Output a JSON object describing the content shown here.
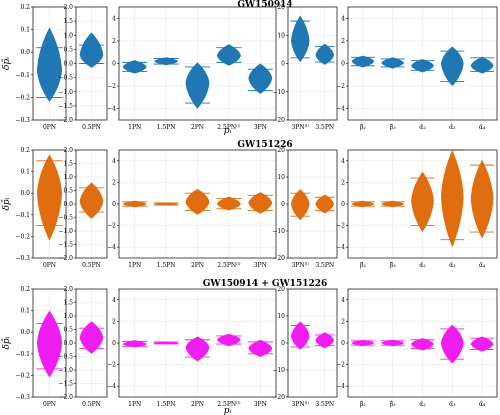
{
  "chart_data": {
    "type": "violin",
    "ylabel": "δp̂ᵢ",
    "xlabel": "pᵢ",
    "panel_groups": [
      {
        "id": "g0",
        "categories": [
          "0PN"
        ],
        "ylim": [
          -0.3,
          0.2
        ],
        "yticks": [
          -0.3,
          -0.2,
          -0.1,
          0,
          0.1,
          0.2
        ],
        "ytick_labels": [
          "−0.3",
          "−0.2",
          "−0.1",
          "0.0",
          "0.1",
          "0.2"
        ]
      },
      {
        "id": "g1",
        "categories": [
          "0.5PN"
        ],
        "ylim": [
          -2.0,
          2.0
        ],
        "yticks": [
          -2,
          -1.5,
          -1,
          -0.5,
          0,
          0.5,
          1,
          1.5,
          2
        ],
        "ytick_labels": [
          "−2.0",
          "−1.5",
          "−1.0",
          "−0.5",
          "0.0",
          "0.5",
          "1.0",
          "1.5",
          "2.0"
        ]
      },
      {
        "id": "g2",
        "categories": [
          "1PN",
          "1.5PN",
          "2PN",
          "2.5PN⁽ˡ⁾",
          "3PN"
        ],
        "ylim": [
          -5,
          5
        ],
        "yticks": [
          -4,
          -2,
          0,
          2,
          4
        ],
        "ytick_labels": [
          "−4",
          "−2",
          "0",
          "2",
          "4"
        ]
      },
      {
        "id": "g3",
        "categories": [
          "3PN⁽ˡ⁾",
          "3.5PN"
        ],
        "ylim": [
          -20,
          20
        ],
        "yticks": [
          -20,
          -10,
          0,
          10,
          20
        ],
        "ytick_labels": [
          "−20",
          "−10",
          "0",
          "10",
          "20"
        ]
      },
      {
        "id": "g4",
        "categories": [
          "β̂₂",
          "β̂₃",
          "α̂₂",
          "α̂₃",
          "α̂₄"
        ],
        "ylim": [
          -5,
          5
        ],
        "yticks": [
          -4,
          -2,
          0,
          2,
          4
        ],
        "ytick_labels": [
          "−4",
          "−2",
          "0",
          "2",
          "4"
        ]
      }
    ],
    "rows": [
      {
        "title": "GW150914",
        "color": "#1f77b4",
        "series": [
          [
            {
              "median": -0.08,
              "lo": -0.2,
              "hi": 0.02,
              "min": -0.22,
              "max": 0.11
            }
          ],
          [
            {
              "median": 0.3,
              "lo": 0.0,
              "hi": 0.65,
              "min": -0.15,
              "max": 1.1
            }
          ],
          [
            {
              "median": -0.3,
              "lo": -0.7,
              "hi": 0.1,
              "min": -0.9,
              "max": 0.3
            },
            {
              "median": 0.2,
              "lo": -0.05,
              "hi": 0.45,
              "min": -0.15,
              "max": 0.55
            },
            {
              "median": -1.7,
              "lo": -3.5,
              "hi": -0.3,
              "min": -4.0,
              "max": 0.1
            },
            {
              "median": 0.7,
              "lo": 0.1,
              "hi": 1.4,
              "min": -0.2,
              "max": 1.7
            },
            {
              "median": -1.3,
              "lo": -2.4,
              "hi": -0.5,
              "min": -2.7,
              "max": 0.0
            }
          ],
          [
            {
              "median": 8.0,
              "lo": 2.0,
              "hi": 15.0,
              "min": 0.5,
              "max": 17.0
            },
            {
              "median": 3.0,
              "lo": 0.5,
              "hi": 6.0,
              "min": -0.5,
              "max": 7.0
            }
          ],
          [
            {
              "median": 0.2,
              "lo": -0.2,
              "hi": 0.55,
              "min": -0.35,
              "max": 0.7
            },
            {
              "median": 0.05,
              "lo": -0.3,
              "hi": 0.4,
              "min": -0.45,
              "max": 0.55
            },
            {
              "median": -0.2,
              "lo": -0.6,
              "hi": 0.25,
              "min": -0.8,
              "max": 0.4
            },
            {
              "median": 0.0,
              "lo": -1.6,
              "hi": 1.1,
              "min": -2.0,
              "max": 1.5
            },
            {
              "median": -0.2,
              "lo": -0.7,
              "hi": 0.5,
              "min": -0.9,
              "max": 0.6
            }
          ]
        ]
      },
      {
        "title": "GW151226",
        "color": "#e06d10",
        "series": [
          [
            {
              "median": 0.0,
              "lo": -0.15,
              "hi": 0.15,
              "min": -0.22,
              "max": 0.18
            }
          ],
          [
            {
              "median": 0.1,
              "lo": -0.3,
              "hi": 0.6,
              "min": -0.55,
              "max": 0.8
            }
          ],
          [
            {
              "median": 0.0,
              "lo": -0.2,
              "hi": 0.2,
              "min": -0.3,
              "max": 0.3
            },
            {
              "median": 0.0,
              "lo": -0.1,
              "hi": 0.1,
              "min": -0.15,
              "max": 0.15
            },
            {
              "median": 0.2,
              "lo": -0.6,
              "hi": 1.0,
              "min": -1.0,
              "max": 1.4
            },
            {
              "median": 0.0,
              "lo": -0.45,
              "hi": 0.5,
              "min": -0.6,
              "max": 0.7
            },
            {
              "median": 0.1,
              "lo": -0.6,
              "hi": 0.8,
              "min": -0.9,
              "max": 1.1
            }
          ],
          [
            {
              "median": 0.0,
              "lo": -4.5,
              "hi": 4.0,
              "min": -6.0,
              "max": 5.5
            },
            {
              "median": 0.0,
              "lo": -2.5,
              "hi": 2.5,
              "min": -3.5,
              "max": 3.5
            }
          ],
          [
            {
              "median": 0.0,
              "lo": -0.2,
              "hi": 0.2,
              "min": -0.3,
              "max": 0.3
            },
            {
              "median": 0.0,
              "lo": -0.2,
              "hi": 0.2,
              "min": -0.3,
              "max": 0.3
            },
            {
              "median": 0.3,
              "lo": -2.0,
              "hi": 2.4,
              "min": -2.6,
              "max": 3.0
            },
            {
              "median": 0.7,
              "lo": -3.3,
              "hi": 5.0,
              "min": -4.0,
              "max": 5.0
            },
            {
              "median": 0.5,
              "lo": -2.6,
              "hi": 3.6,
              "min": -3.2,
              "max": 4.1
            }
          ]
        ]
      },
      {
        "title": "GW150914 + GW151226",
        "color": "#f01df0",
        "series": [
          [
            {
              "median": -0.05,
              "lo": -0.17,
              "hi": 0.04,
              "min": -0.21,
              "max": 0.1
            }
          ],
          [
            {
              "median": 0.2,
              "lo": -0.2,
              "hi": 0.55,
              "min": -0.4,
              "max": 0.8
            }
          ],
          [
            {
              "median": -0.1,
              "lo": -0.3,
              "hi": 0.15,
              "min": -0.4,
              "max": 0.25
            },
            {
              "median": 0.0,
              "lo": -0.08,
              "hi": 0.1,
              "min": -0.12,
              "max": 0.15
            },
            {
              "median": -0.4,
              "lo": -1.3,
              "hi": 0.3,
              "min": -1.7,
              "max": 0.6
            },
            {
              "median": 0.3,
              "lo": -0.1,
              "hi": 0.65,
              "min": -0.3,
              "max": 0.85
            },
            {
              "median": -0.5,
              "lo": -1.0,
              "hi": 0.1,
              "min": -1.3,
              "max": 0.3
            }
          ],
          [
            {
              "median": 2.5,
              "lo": -1.5,
              "hi": 6.5,
              "min": -2.5,
              "max": 8.0
            },
            {
              "median": 1.0,
              "lo": -1.0,
              "hi": 3.0,
              "min": -2.0,
              "max": 4.0
            }
          ],
          [
            {
              "median": 0.0,
              "lo": -0.2,
              "hi": 0.2,
              "min": -0.3,
              "max": 0.3
            },
            {
              "median": 0.0,
              "lo": -0.2,
              "hi": 0.2,
              "min": -0.3,
              "max": 0.3
            },
            {
              "median": -0.1,
              "lo": -0.5,
              "hi": 0.3,
              "min": -0.7,
              "max": 0.45
            },
            {
              "median": 0.0,
              "lo": -1.5,
              "hi": 1.3,
              "min": -1.9,
              "max": 1.7
            },
            {
              "median": -0.1,
              "lo": -0.6,
              "hi": 0.45,
              "min": -0.8,
              "max": 0.6
            }
          ]
        ]
      }
    ],
    "grid": true,
    "legend": "none"
  }
}
